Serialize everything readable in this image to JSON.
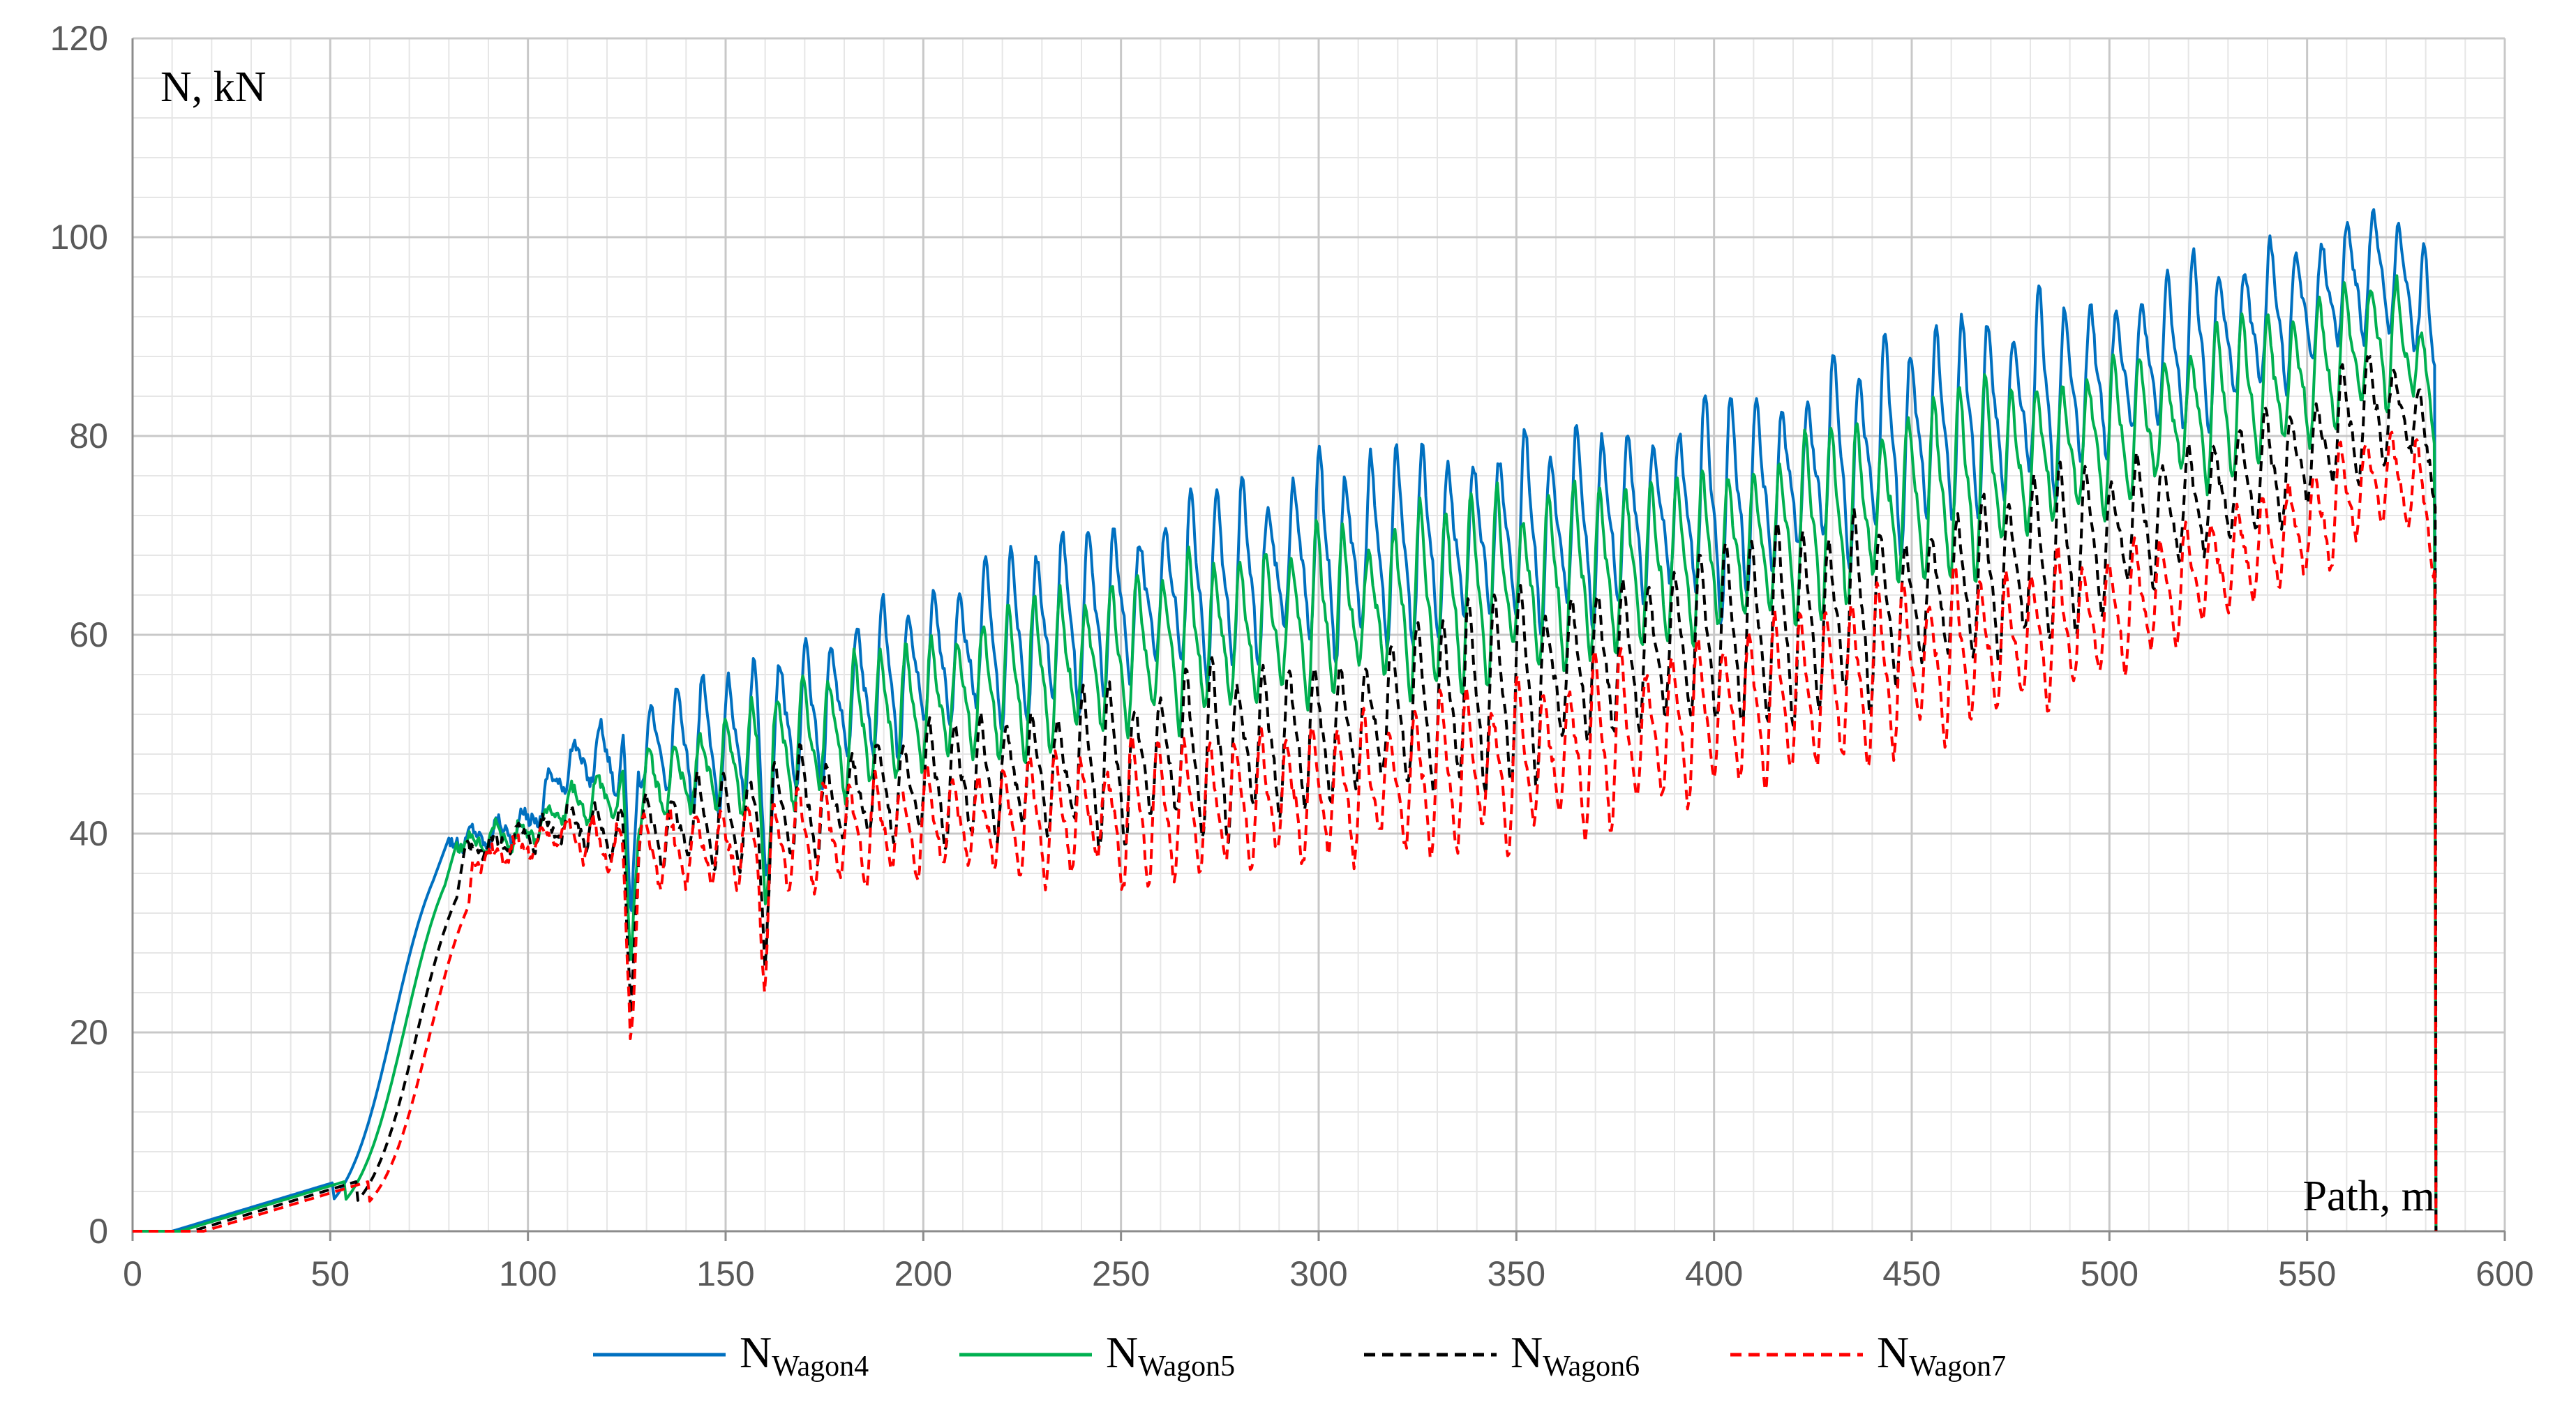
{
  "chart_data": {
    "type": "line",
    "title": "",
    "ylabel": "N, kN",
    "xlabel": "Path, m",
    "xlim": [
      0,
      600
    ],
    "ylim": [
      0,
      120
    ],
    "x_ticks": [
      0,
      50,
      100,
      150,
      200,
      250,
      300,
      350,
      400,
      450,
      500,
      550,
      600
    ],
    "y_ticks": [
      0,
      20,
      40,
      60,
      80,
      100,
      120
    ],
    "x_minor_step": 10,
    "y_minor_step": 4,
    "grid": true,
    "legend_position": "bottom",
    "series": [
      {
        "name": "N",
        "name_sub": "Wagon4",
        "color": "#0070C0",
        "dash": "solid",
        "start_x": 10,
        "rise_mid_x": 66,
        "rise_top": 42,
        "peak_x": 76,
        "trend": [
          [
            80,
            39
          ],
          [
            100,
            41
          ],
          [
            110,
            47
          ],
          [
            125,
            48
          ],
          [
            160,
            50
          ],
          [
            200,
            57
          ],
          [
            250,
            63
          ],
          [
            300,
            68
          ],
          [
            350,
            70
          ],
          [
            400,
            73
          ],
          [
            450,
            80
          ],
          [
            500,
            86
          ],
          [
            550,
            93
          ],
          [
            568,
            97
          ],
          [
            578,
            94
          ],
          [
            582,
            88
          ]
        ],
        "amplitude": [
          [
            80,
            1
          ],
          [
            110,
            3
          ],
          [
            150,
            7
          ],
          [
            250,
            9
          ],
          [
            400,
            11
          ],
          [
            500,
            10
          ],
          [
            582,
            7
          ]
        ],
        "period": 6.5,
        "phase": 0.0,
        "end_x": 582.5
      },
      {
        "name": "N",
        "name_sub": "Wagon5",
        "color": "#00B050",
        "dash": "solid",
        "start_x": 12,
        "rise_mid_x": 69,
        "rise_top": 41.5,
        "peak_x": 79,
        "trend": [
          [
            82,
            39
          ],
          [
            100,
            40
          ],
          [
            110,
            43
          ],
          [
            125,
            44
          ],
          [
            160,
            48
          ],
          [
            200,
            53
          ],
          [
            250,
            58
          ],
          [
            300,
            62
          ],
          [
            350,
            65
          ],
          [
            400,
            68
          ],
          [
            450,
            74
          ],
          [
            500,
            80
          ],
          [
            550,
            86
          ],
          [
            568,
            90
          ],
          [
            578,
            88
          ],
          [
            582,
            82
          ]
        ],
        "amplitude": [
          [
            82,
            1
          ],
          [
            110,
            2
          ],
          [
            150,
            6
          ],
          [
            250,
            8
          ],
          [
            400,
            10
          ],
          [
            500,
            9
          ],
          [
            582,
            6
          ]
        ],
        "period": 6.5,
        "phase": 0.6,
        "end_x": 582.5
      },
      {
        "name": "N",
        "name_sub": "Wagon6",
        "color": "#000000",
        "dash": "dashed",
        "start_x": 15,
        "rise_mid_x": 72,
        "rise_top": 40,
        "peak_x": 82,
        "trend": [
          [
            84,
            38
          ],
          [
            100,
            40
          ],
          [
            110,
            41
          ],
          [
            125,
            40
          ],
          [
            160,
            42
          ],
          [
            200,
            45
          ],
          [
            250,
            47
          ],
          [
            300,
            50
          ],
          [
            350,
            55
          ],
          [
            400,
            60
          ],
          [
            450,
            63
          ],
          [
            500,
            70
          ],
          [
            550,
            78
          ],
          [
            568,
            83
          ],
          [
            578,
            82
          ],
          [
            582,
            76
          ]
        ],
        "amplitude": [
          [
            84,
            1
          ],
          [
            110,
            2
          ],
          [
            150,
            5
          ],
          [
            250,
            8
          ],
          [
            400,
            10
          ],
          [
            500,
            8
          ],
          [
            582,
            5
          ]
        ],
        "period": 6.5,
        "phase": 1.2,
        "end_x": 582.5
      },
      {
        "name": "N",
        "name_sub": "Wagon7",
        "color": "#FF0000",
        "dash": "dashed",
        "start_x": 18,
        "rise_mid_x": 75,
        "rise_top": 39,
        "peak_x": 85,
        "trend": [
          [
            86,
            37
          ],
          [
            100,
            39
          ],
          [
            110,
            40
          ],
          [
            125,
            38
          ],
          [
            160,
            39
          ],
          [
            200,
            41
          ],
          [
            250,
            42
          ],
          [
            300,
            44
          ],
          [
            350,
            47
          ],
          [
            400,
            52
          ],
          [
            450,
            57
          ],
          [
            500,
            62
          ],
          [
            550,
            71
          ],
          [
            568,
            76
          ],
          [
            578,
            75
          ],
          [
            582,
            70
          ]
        ],
        "amplitude": [
          [
            86,
            1
          ],
          [
            110,
            2
          ],
          [
            150,
            5
          ],
          [
            250,
            7
          ],
          [
            400,
            9
          ],
          [
            500,
            8
          ],
          [
            582,
            5
          ]
        ],
        "period": 6.5,
        "phase": 1.8,
        "end_x": 582.5
      }
    ]
  }
}
